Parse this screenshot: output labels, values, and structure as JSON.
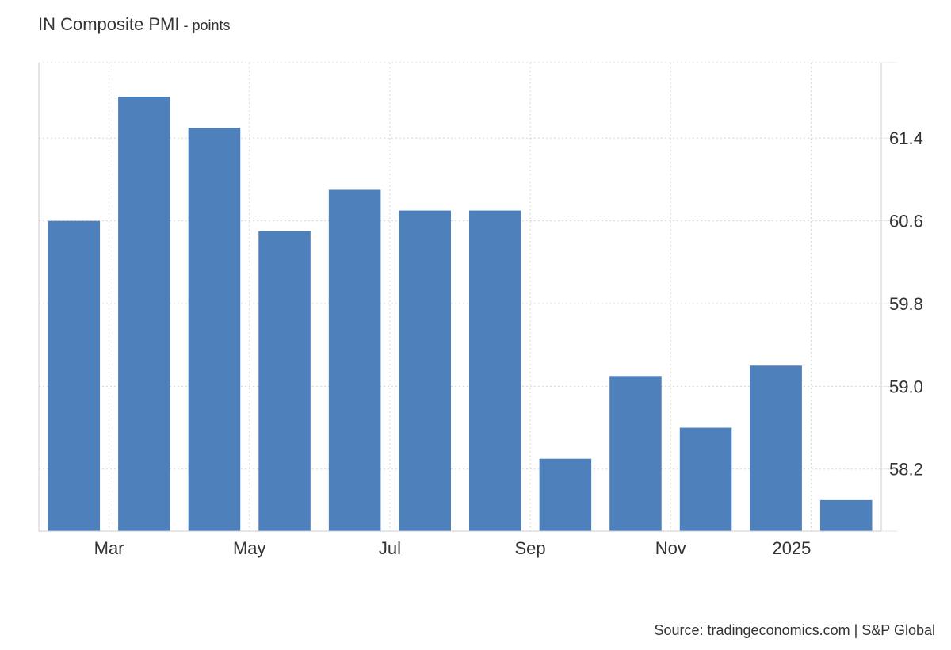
{
  "chart_data": {
    "type": "bar",
    "title": "IN Composite PMI",
    "unit_suffix": " - points",
    "x_tick_labels": [
      "Mar",
      "May",
      "Jul",
      "Sep",
      "Nov",
      "2025"
    ],
    "categories": [
      "2024-02",
      "2024-03",
      "2024-04",
      "2024-05",
      "2024-06",
      "2024-07",
      "2024-08",
      "2024-09",
      "2024-10",
      "2024-11",
      "2024-12",
      "2025-01"
    ],
    "values": [
      60.6,
      61.8,
      61.5,
      60.5,
      60.9,
      60.7,
      60.7,
      58.3,
      59.1,
      58.6,
      59.2,
      57.9
    ],
    "y_ticks": [
      58.2,
      59.0,
      59.8,
      60.6,
      61.4
    ],
    "ylim": [
      57.6,
      62.13
    ],
    "y_axis_position": "right",
    "grid": true,
    "bar_color": "#4e81bc"
  },
  "source": "Source: tradingeconomics.com | S&P Global"
}
